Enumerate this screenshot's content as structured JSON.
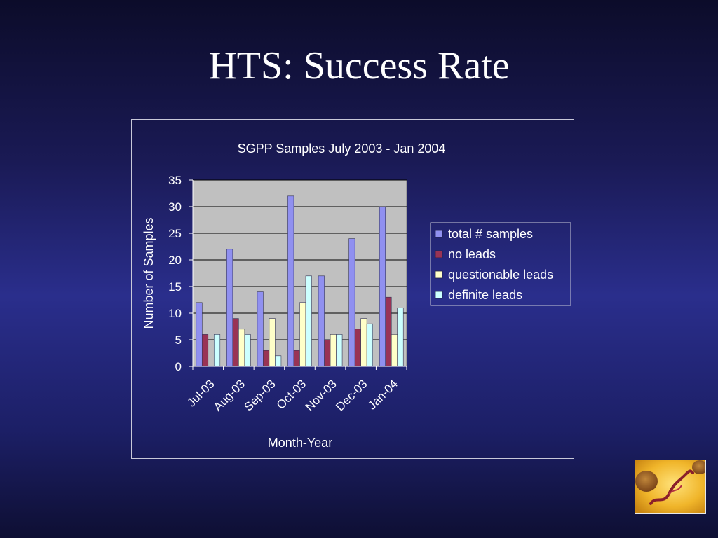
{
  "slide": {
    "title": "HTS: Success Rate"
  },
  "colors": {
    "background": "#1f2370",
    "plot_area": "#c0c0c0",
    "text": "#ffffff"
  },
  "photo": {
    "icon": "microscope-parasite-image"
  },
  "chart_data": {
    "type": "bar",
    "title": "SGPP Samples July 2003 - Jan 2004",
    "xlabel": "Month-Year",
    "ylabel": "Number of Samples",
    "ylim": [
      0,
      35
    ],
    "yticks": [
      0,
      5,
      10,
      15,
      20,
      25,
      30,
      35
    ],
    "categories": [
      "Jul-03",
      "Aug-03",
      "Sep-03",
      "Oct-03",
      "Nov-03",
      "Dec-03",
      "Jan-04"
    ],
    "grid": true,
    "legend_position": "right",
    "series": [
      {
        "name": "total # samples",
        "color": "#9090f0",
        "values": [
          12,
          22,
          14,
          32,
          17,
          24,
          30
        ]
      },
      {
        "name": "no leads",
        "color": "#993355",
        "values": [
          6,
          9,
          3,
          3,
          5,
          7,
          13
        ]
      },
      {
        "name": "questionable leads",
        "color": "#ffffc8",
        "values": [
          0,
          7,
          9,
          12,
          6,
          9,
          6
        ]
      },
      {
        "name": "definite leads",
        "color": "#ccffff",
        "values": [
          6,
          6,
          2,
          17,
          6,
          8,
          11
        ]
      }
    ]
  }
}
